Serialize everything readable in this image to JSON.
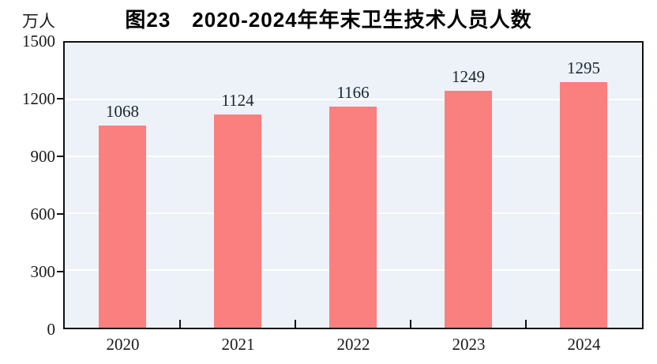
{
  "chart_data": {
    "type": "bar",
    "title": "图23　2020-2024年年末卫生技术人员人数",
    "unit_label": "万人",
    "categories": [
      "2020",
      "2021",
      "2022",
      "2023",
      "2024"
    ],
    "values": [
      1068,
      1124,
      1166,
      1249,
      1295
    ],
    "value_labels": [
      "1068",
      "1124",
      "1166",
      "1249",
      "1295"
    ],
    "xlabel": "",
    "ylabel": "万人",
    "ylim": [
      0,
      1500
    ],
    "yticks": [
      0,
      300,
      600,
      900,
      1200,
      1500
    ],
    "grid": "horizontal-white",
    "legend": "none",
    "colors": {
      "bar": "#fa7f7f",
      "plot_background": "#ecf2f7",
      "gridline": "#ffffff",
      "axis": "#111111",
      "text": "#1a1a1a",
      "value_label_text": "#1b2430"
    }
  }
}
